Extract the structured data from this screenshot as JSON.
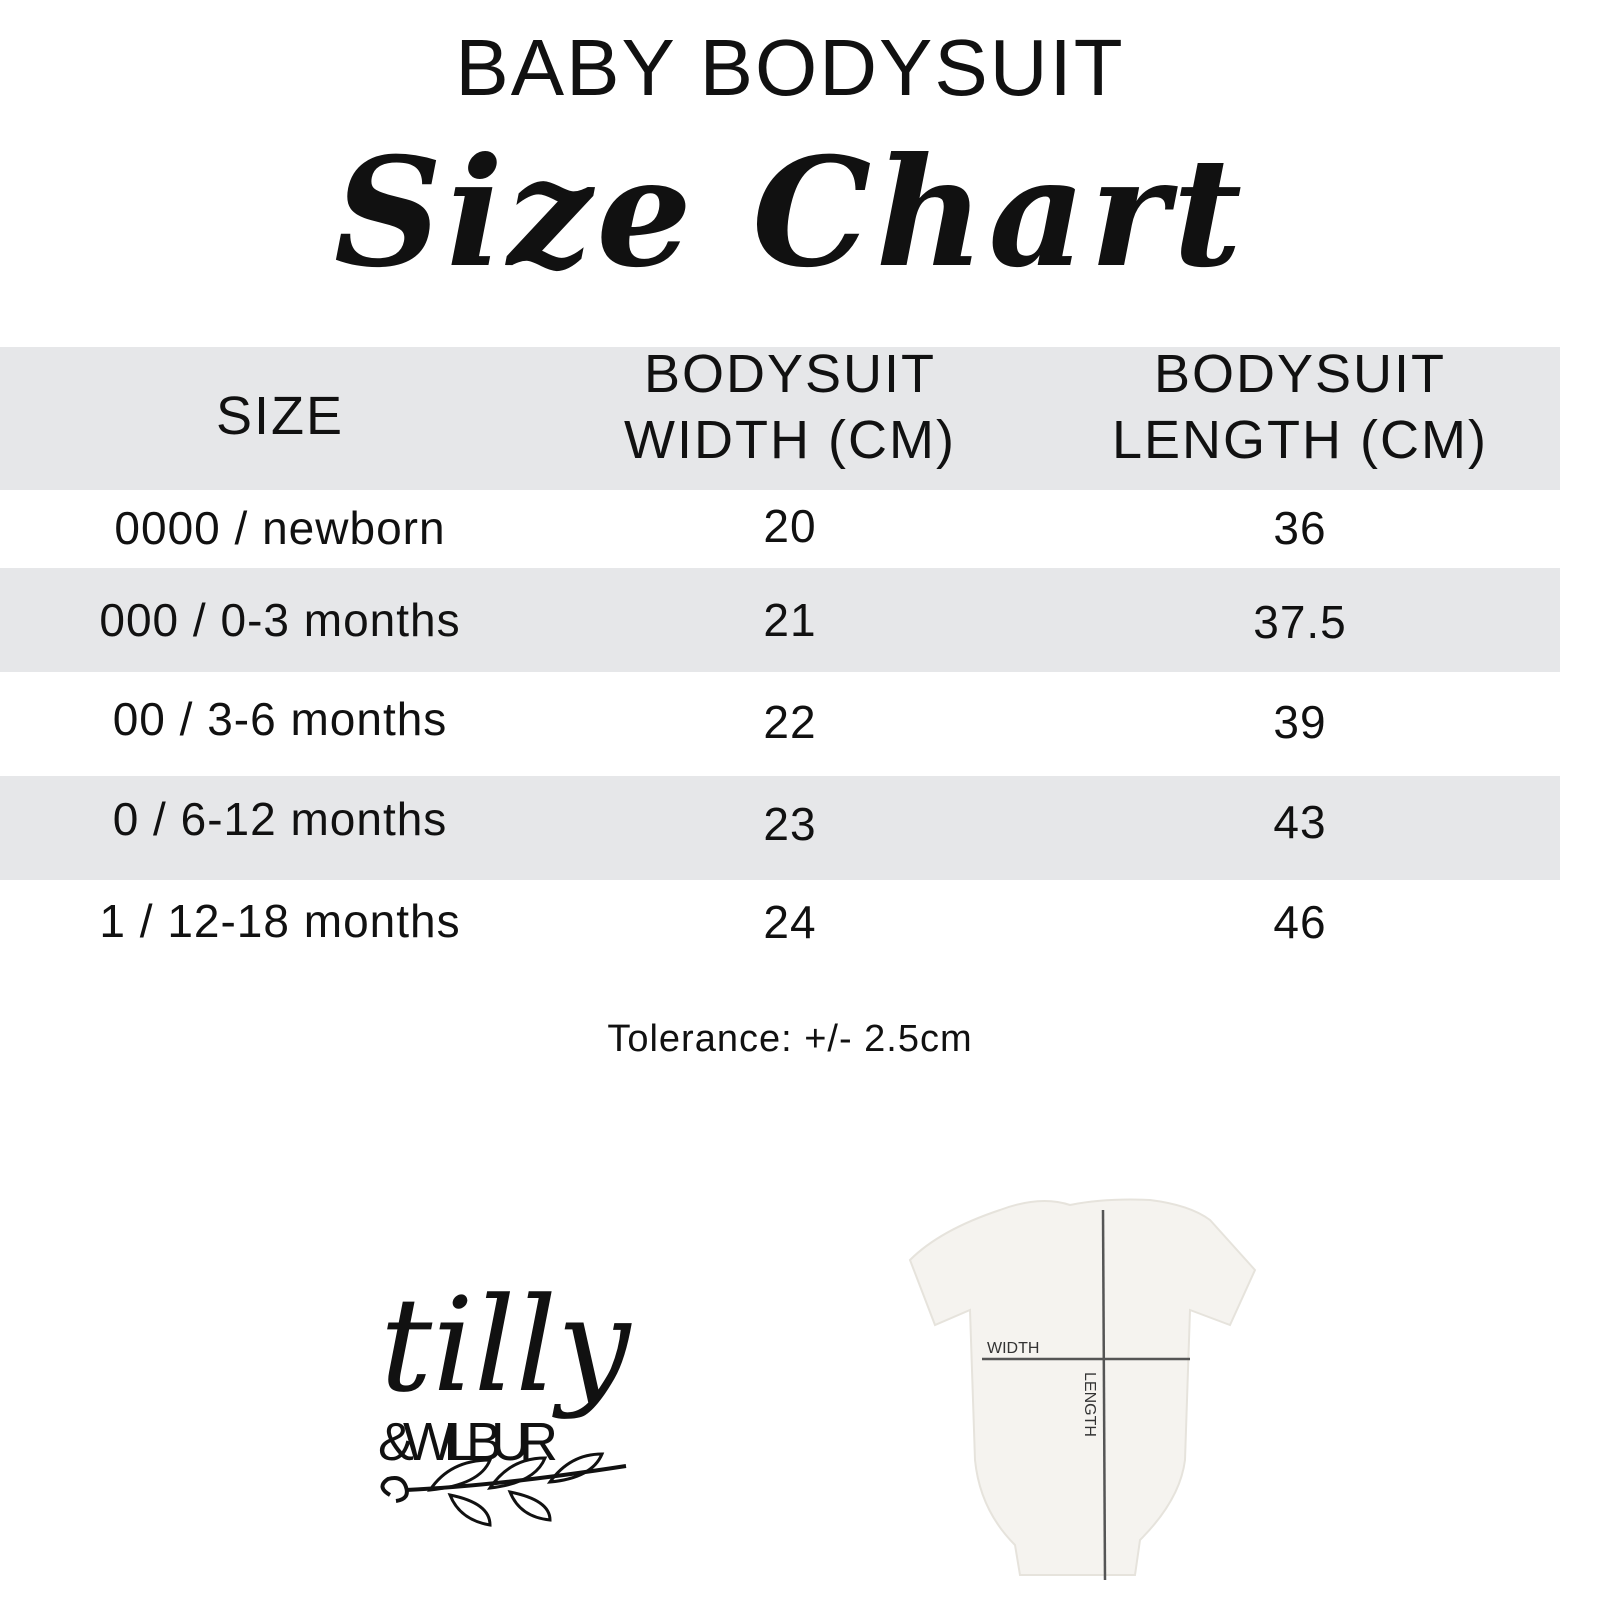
{
  "header": {
    "title": "BABY BODYSUIT",
    "subtitle": "Size Chart"
  },
  "table": {
    "columns": [
      "SIZE",
      "BODYSUIT WIDTH (CM)",
      "BODYSUIT LENGTH (CM)"
    ],
    "columns_lines": [
      [
        "SIZE"
      ],
      [
        "BODYSUIT",
        "WIDTH (CM)"
      ],
      [
        "BODYSUIT",
        "LENGTH (CM)"
      ]
    ],
    "rows": [
      [
        "0000 / newborn",
        "20",
        "36"
      ],
      [
        "000 / 0-3 months",
        "21",
        "37.5"
      ],
      [
        "00 / 3-6 months",
        "22",
        "39"
      ],
      [
        "0 / 6-12 months",
        "23",
        "43"
      ],
      [
        "1 / 12-18 months",
        "24",
        "46"
      ]
    ],
    "band_color": "#e6e7e9"
  },
  "tolerance": "Tolerance: +/- 2.5cm",
  "logo": {
    "line1": "tilly",
    "line2": "&WILBUR"
  },
  "diagram": {
    "width_label": "WIDTH",
    "length_label": "LENGTH"
  }
}
